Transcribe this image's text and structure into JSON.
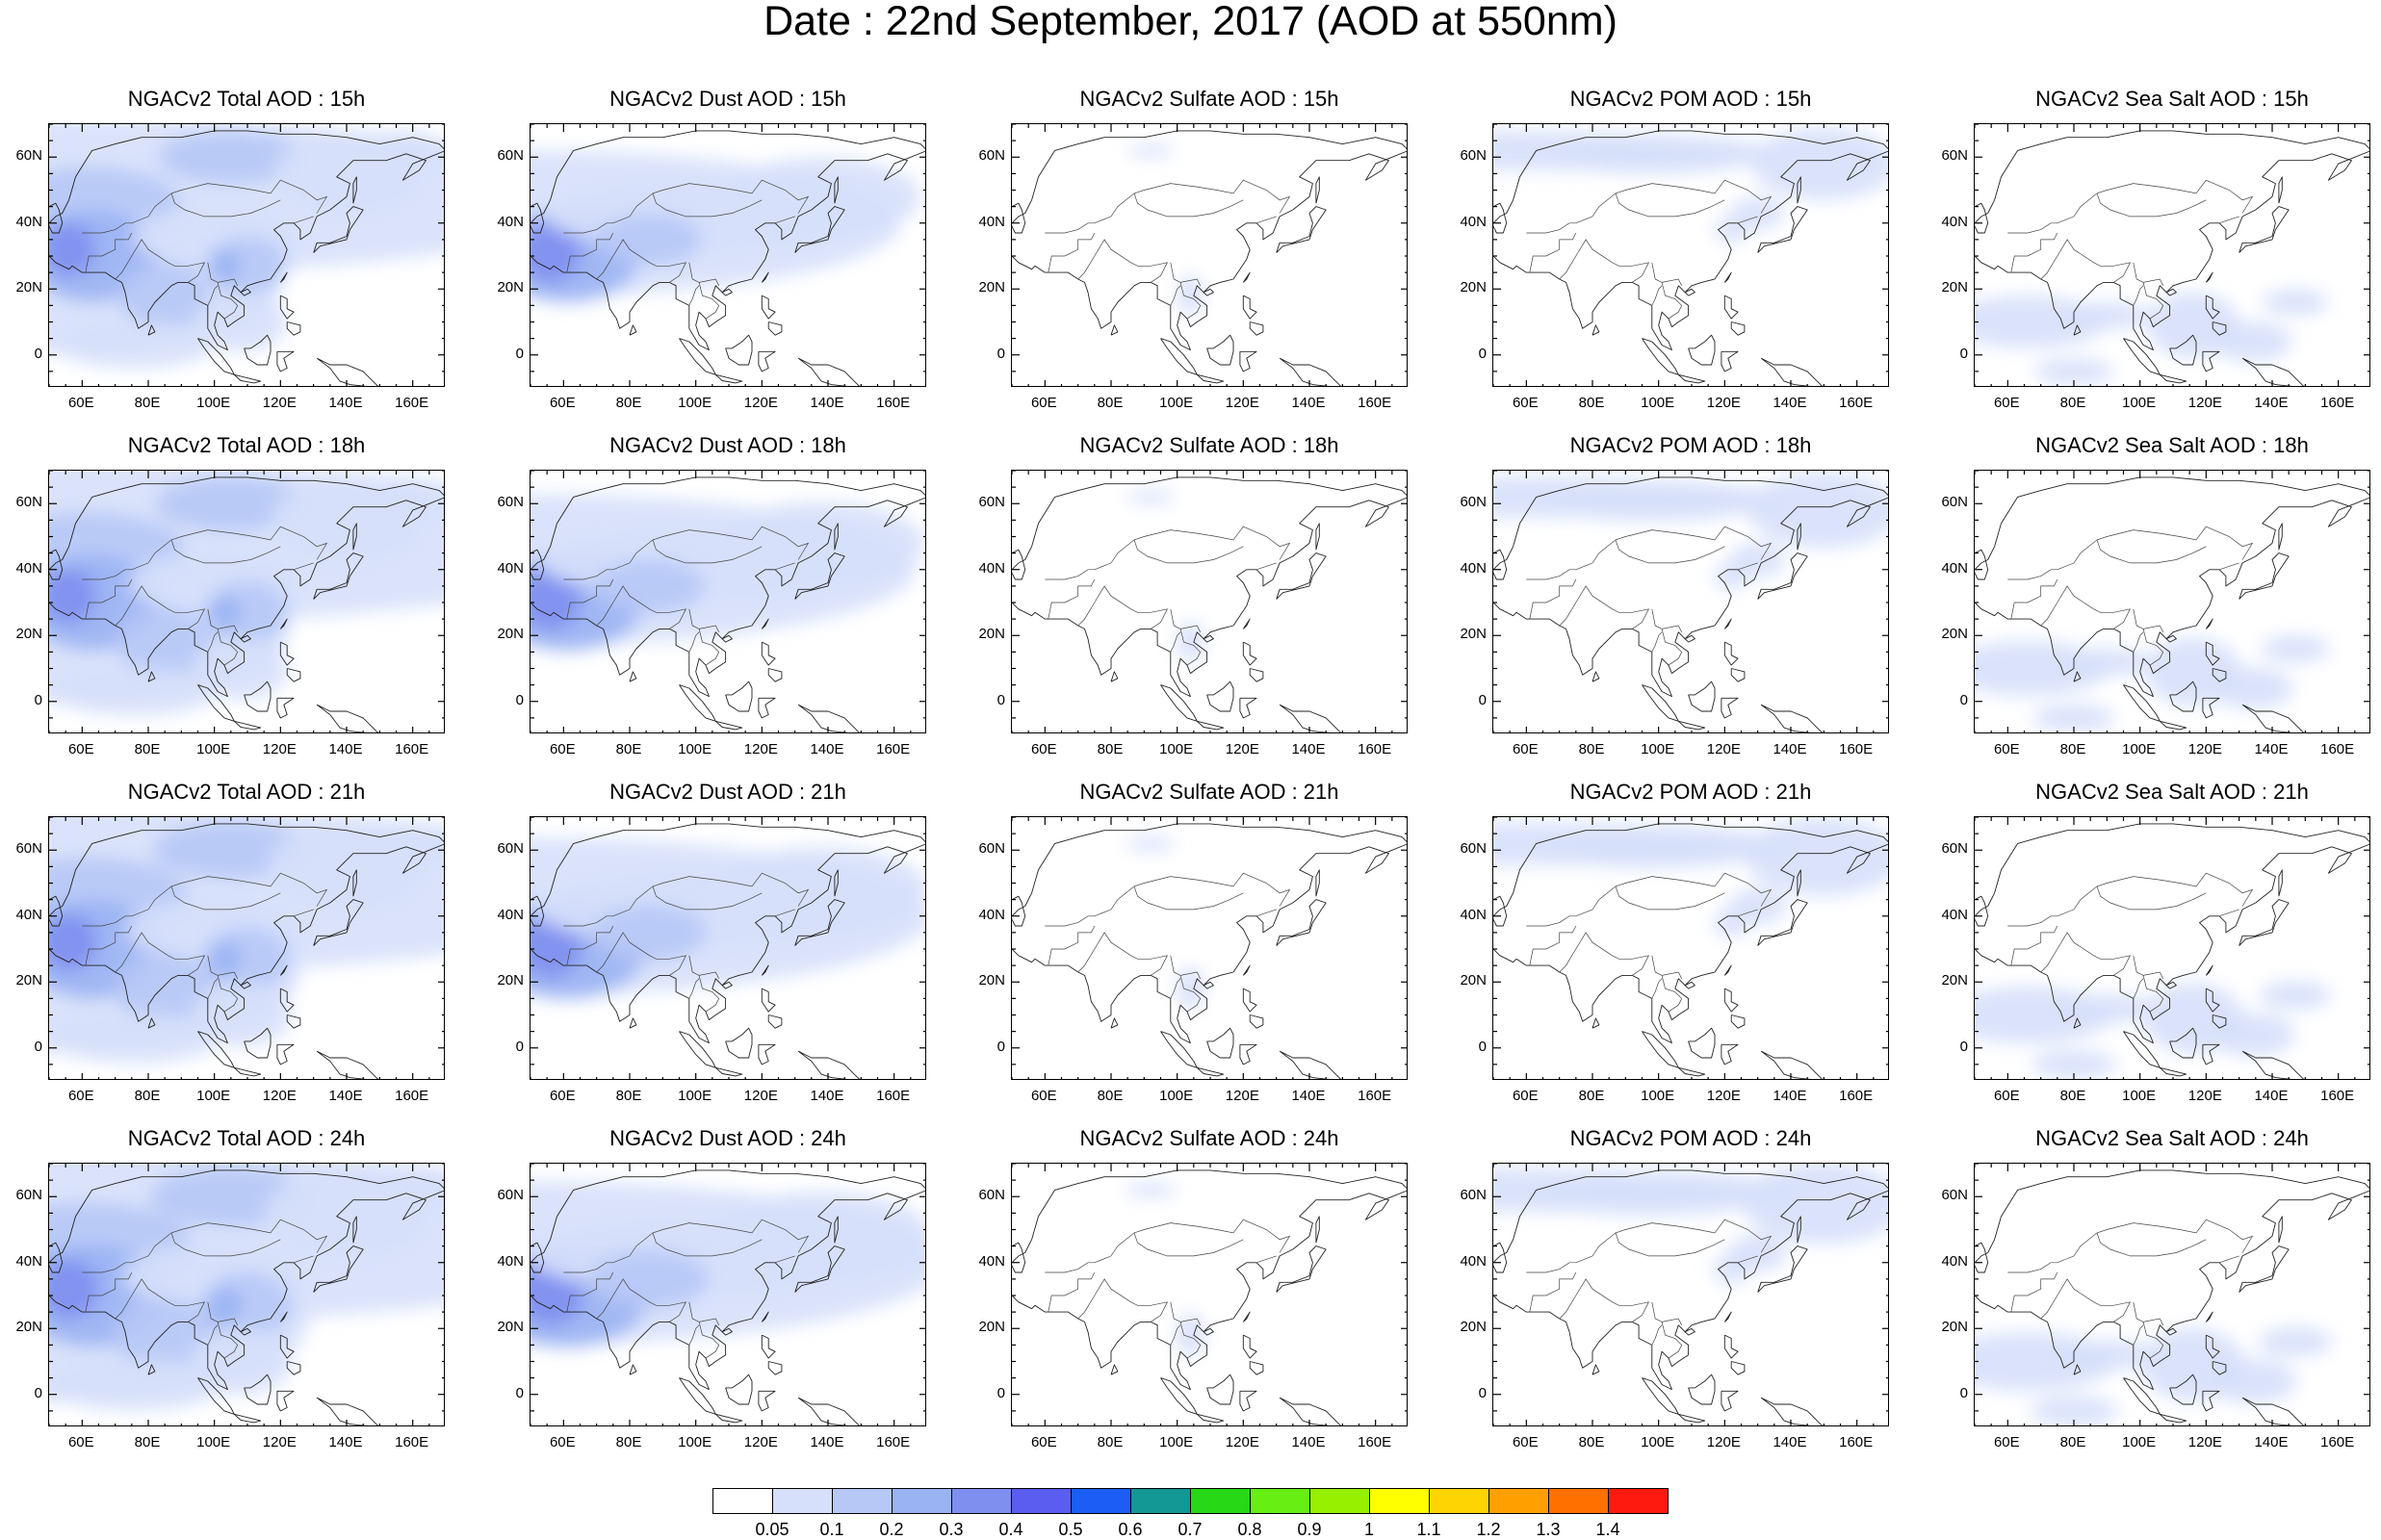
{
  "title": "Date : 22nd September, 2017 (AOD at 550nm)",
  "map_panels": {
    "columns": [
      "total",
      "dust",
      "sulfate",
      "pom",
      "seasalt"
    ],
    "rows": [
      "15h",
      "18h",
      "21h",
      "24h"
    ],
    "titles": [
      [
        "NGACv2 Total AOD : 15h",
        "NGACv2 Dust AOD : 15h",
        "NGACv2 Sulfate AOD : 15h",
        "NGACv2 POM AOD : 15h",
        "NGACv2 Sea Salt AOD : 15h"
      ],
      [
        "NGACv2 Total AOD : 18h",
        "NGACv2 Dust AOD : 18h",
        "NGACv2 Sulfate AOD : 18h",
        "NGACv2 POM AOD : 18h",
        "NGACv2 Sea Salt AOD : 18h"
      ],
      [
        "NGACv2 Total AOD : 21h",
        "NGACv2 Dust AOD : 21h",
        "NGACv2 Sulfate AOD : 21h",
        "NGACv2 POM AOD : 21h",
        "NGACv2 Sea Salt AOD : 21h"
      ],
      [
        "NGACv2 Total AOD : 24h",
        "NGACv2 Dust AOD : 24h",
        "NGACv2 Sulfate AOD : 24h",
        "NGACv2 POM AOD : 24h",
        "NGACv2 Sea Salt  AOD : 24h"
      ]
    ],
    "lat_ticks": [
      "60N",
      "40N",
      "20N",
      "0"
    ],
    "lon_ticks": [
      "60E",
      "80E",
      "100E",
      "120E",
      "140E",
      "160E"
    ],
    "lat_values": [
      60,
      40,
      20,
      0
    ],
    "lon_values": [
      60,
      80,
      100,
      120,
      140,
      160
    ],
    "lat_range": [
      -10,
      70
    ],
    "lon_range": [
      50,
      170
    ]
  },
  "colorbar": {
    "labels": [
      "0.05",
      "0.1",
      "0.2",
      "0.3",
      "0.4",
      "0.5",
      "0.6",
      "0.7",
      "0.8",
      "0.9",
      "1",
      "1.1",
      "1.2",
      "1.3",
      "1.4"
    ],
    "colors": [
      "#ffffff",
      "#d6e0fb",
      "#b7c8f7",
      "#9ab3f3",
      "#7e8ff0",
      "#5a5df0",
      "#1c5df5",
      "#139896",
      "#26d816",
      "#67ee13",
      "#96f000",
      "#ffff00",
      "#ffd400",
      "#ffa000",
      "#ff7000",
      "#ff1a10"
    ]
  }
}
